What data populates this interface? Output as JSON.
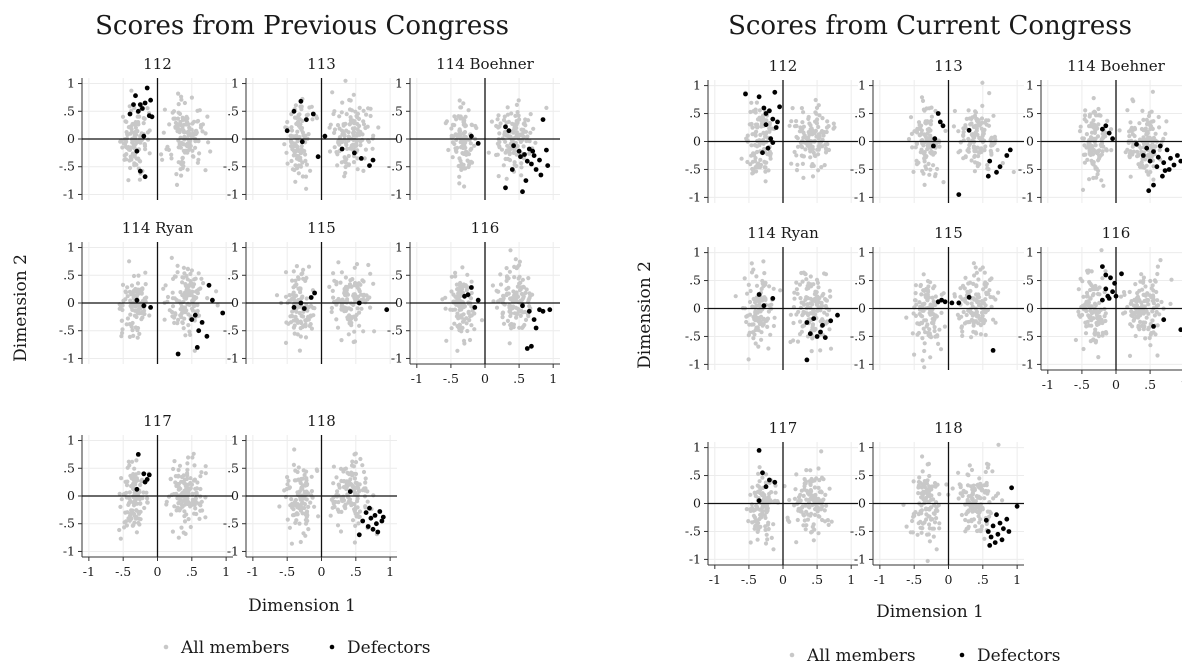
{
  "legend": {
    "all_label": "All members",
    "defector_label": "Defectors",
    "colors": {
      "all": "#c8c8c8",
      "defectors": "#000000"
    }
  },
  "chart_data": [
    {
      "type": "scatter",
      "title": "Scores from Previous Congress",
      "xlabel": "Dimension 1",
      "ylabel": "Dimension 2",
      "xlim": [
        -1.1,
        1.1
      ],
      "ylim": [
        -1.1,
        1.1
      ],
      "xticks": [
        -1,
        -0.5,
        0,
        0.5,
        1
      ],
      "xtick_labels": [
        "-1",
        "-.5",
        "0",
        ".5",
        "1"
      ],
      "yticks": [
        1,
        0.5,
        0,
        -0.5,
        -1
      ],
      "ytick_labels": [
        "1",
        ".5",
        "0",
        "-.5",
        "-1"
      ],
      "grid": true,
      "legend_position": "bottom",
      "panels": [
        {
          "label": "112",
          "defectors": [
            [
              -0.35,
              0.62
            ],
            [
              -0.32,
              0.78
            ],
            [
              -0.28,
              0.5
            ],
            [
              -0.25,
              0.62
            ],
            [
              -0.22,
              0.55
            ],
            [
              -0.18,
              0.65
            ],
            [
              -0.15,
              0.92
            ],
            [
              -0.12,
              0.42
            ],
            [
              -0.08,
              0.4
            ],
            [
              -0.2,
              0.05
            ],
            [
              -0.3,
              -0.22
            ],
            [
              -0.25,
              -0.58
            ],
            [
              -0.18,
              -0.68
            ],
            [
              -0.4,
              0.45
            ],
            [
              -0.1,
              0.7
            ]
          ]
        },
        {
          "label": "113",
          "defectors": [
            [
              -0.5,
              0.15
            ],
            [
              -0.4,
              0.5
            ],
            [
              -0.3,
              0.68
            ],
            [
              -0.22,
              0.35
            ],
            [
              -0.12,
              0.45
            ],
            [
              -0.28,
              -0.05
            ],
            [
              -0.05,
              -0.32
            ],
            [
              0.05,
              0.05
            ],
            [
              0.3,
              -0.18
            ],
            [
              0.48,
              -0.25
            ],
            [
              0.58,
              -0.35
            ],
            [
              0.7,
              -0.48
            ],
            [
              0.75,
              -0.38
            ]
          ]
        },
        {
          "label": "114 Boehner",
          "defectors": [
            [
              -0.2,
              0.05
            ],
            [
              -0.1,
              -0.08
            ],
            [
              0.3,
              0.22
            ],
            [
              0.35,
              0.15
            ],
            [
              0.42,
              -0.12
            ],
            [
              0.5,
              -0.22
            ],
            [
              0.52,
              -0.32
            ],
            [
              0.58,
              -0.28
            ],
            [
              0.62,
              -0.4
            ],
            [
              0.65,
              -0.18
            ],
            [
              0.68,
              -0.45
            ],
            [
              0.72,
              -0.3
            ],
            [
              0.75,
              -0.55
            ],
            [
              0.8,
              -0.38
            ],
            [
              0.82,
              -0.65
            ],
            [
              0.9,
              -0.2
            ],
            [
              0.85,
              0.35
            ],
            [
              0.4,
              -0.55
            ],
            [
              0.55,
              -0.95
            ],
            [
              0.6,
              -0.75
            ],
            [
              0.92,
              -0.48
            ],
            [
              0.3,
              -0.88
            ],
            [
              0.7,
              -0.22
            ]
          ]
        },
        {
          "label": "114 Ryan",
          "defectors": [
            [
              -0.3,
              0.05
            ],
            [
              -0.2,
              -0.05
            ],
            [
              -0.1,
              -0.08
            ],
            [
              0.5,
              -0.3
            ],
            [
              0.55,
              -0.22
            ],
            [
              0.6,
              -0.5
            ],
            [
              0.58,
              -0.8
            ],
            [
              0.65,
              -0.35
            ],
            [
              0.75,
              0.32
            ],
            [
              0.72,
              -0.6
            ],
            [
              0.8,
              0.05
            ],
            [
              0.95,
              -0.18
            ],
            [
              0.3,
              -0.92
            ]
          ]
        },
        {
          "label": "115",
          "defectors": [
            [
              -0.4,
              -0.08
            ],
            [
              -0.3,
              0.0
            ],
            [
              -0.25,
              -0.1
            ],
            [
              -0.15,
              0.1
            ],
            [
              -0.1,
              0.18
            ],
            [
              0.55,
              0.0
            ],
            [
              0.95,
              -0.12
            ]
          ]
        },
        {
          "label": "116",
          "defectors": [
            [
              -0.3,
              0.12
            ],
            [
              -0.25,
              0.15
            ],
            [
              -0.2,
              0.28
            ],
            [
              -0.15,
              -0.08
            ],
            [
              -0.1,
              0.05
            ],
            [
              0.55,
              -0.05
            ],
            [
              0.65,
              -0.15
            ],
            [
              0.72,
              -0.3
            ],
            [
              0.75,
              -0.45
            ],
            [
              0.8,
              -0.12
            ],
            [
              0.85,
              -0.15
            ],
            [
              0.95,
              -0.12
            ],
            [
              0.62,
              -0.82
            ],
            [
              0.68,
              -0.78
            ]
          ]
        },
        {
          "label": "117",
          "defectors": [
            [
              -0.3,
              0.12
            ],
            [
              -0.28,
              0.75
            ],
            [
              -0.2,
              0.4
            ],
            [
              -0.18,
              0.25
            ],
            [
              -0.15,
              0.3
            ],
            [
              -0.12,
              0.38
            ]
          ]
        },
        {
          "label": "118",
          "defectors": [
            [
              0.42,
              0.08
            ],
            [
              0.55,
              -0.7
            ],
            [
              0.6,
              -0.45
            ],
            [
              0.65,
              -0.3
            ],
            [
              0.68,
              -0.55
            ],
            [
              0.7,
              -0.22
            ],
            [
              0.72,
              -0.4
            ],
            [
              0.75,
              -0.6
            ],
            [
              0.78,
              -0.35
            ],
            [
              0.8,
              -0.5
            ],
            [
              0.82,
              -0.65
            ],
            [
              0.85,
              -0.28
            ],
            [
              0.88,
              -0.45
            ],
            [
              0.9,
              -0.38
            ]
          ]
        }
      ]
    },
    {
      "type": "scatter",
      "title": "Scores from Current Congress",
      "xlabel": "Dimension 1",
      "ylabel": "Dimension 2",
      "xlim": [
        -1.1,
        1.1
      ],
      "ylim": [
        -1.1,
        1.1
      ],
      "xticks": [
        -1,
        -0.5,
        0,
        0.5,
        1
      ],
      "xtick_labels": [
        "-1",
        "-.5",
        "0",
        ".5",
        "1"
      ],
      "yticks": [
        1,
        0.5,
        0,
        -0.5,
        -1
      ],
      "ytick_labels": [
        "1",
        ".5",
        "0",
        "-.5",
        "-1"
      ],
      "grid": true,
      "legend_position": "bottom",
      "panels": [
        {
          "label": "112",
          "defectors": [
            [
              -0.55,
              0.85
            ],
            [
              -0.35,
              0.8
            ],
            [
              -0.28,
              0.6
            ],
            [
              -0.25,
              0.5
            ],
            [
              -0.2,
              0.55
            ],
            [
              -0.15,
              0.4
            ],
            [
              -0.12,
              0.88
            ],
            [
              -0.1,
              0.25
            ],
            [
              -0.05,
              0.62
            ],
            [
              -0.08,
              0.35
            ],
            [
              -0.18,
              0.05
            ],
            [
              -0.22,
              -0.12
            ],
            [
              -0.3,
              -0.2
            ],
            [
              -0.15,
              -0.02
            ],
            [
              -0.25,
              0.3
            ]
          ]
        },
        {
          "label": "113",
          "defectors": [
            [
              -0.2,
              0.05
            ],
            [
              -0.15,
              0.5
            ],
            [
              -0.12,
              0.35
            ],
            [
              -0.08,
              0.28
            ],
            [
              -0.22,
              -0.08
            ],
            [
              0.3,
              0.2
            ],
            [
              0.6,
              -0.35
            ],
            [
              0.7,
              -0.55
            ],
            [
              0.75,
              -0.45
            ],
            [
              0.85,
              -0.25
            ],
            [
              0.9,
              -0.15
            ],
            [
              0.58,
              -0.62
            ],
            [
              0.15,
              -0.95
            ]
          ]
        },
        {
          "label": "114 Boehner",
          "defectors": [
            [
              -0.2,
              0.22
            ],
            [
              -0.15,
              0.28
            ],
            [
              -0.1,
              0.15
            ],
            [
              -0.05,
              0.05
            ],
            [
              0.3,
              -0.05
            ],
            [
              0.4,
              -0.25
            ],
            [
              0.45,
              -0.12
            ],
            [
              0.5,
              -0.35
            ],
            [
              0.55,
              -0.18
            ],
            [
              0.6,
              -0.45
            ],
            [
              0.62,
              -0.28
            ],
            [
              0.65,
              -0.08
            ],
            [
              0.7,
              -0.38
            ],
            [
              0.72,
              -0.52
            ],
            [
              0.75,
              -0.15
            ],
            [
              0.8,
              -0.3
            ],
            [
              0.85,
              -0.42
            ],
            [
              0.9,
              -0.25
            ],
            [
              0.95,
              -0.35
            ],
            [
              0.55,
              -0.78
            ],
            [
              0.48,
              -0.88
            ],
            [
              0.68,
              -0.62
            ],
            [
              0.78,
              -0.5
            ]
          ]
        },
        {
          "label": "114 Ryan",
          "defectors": [
            [
              -0.35,
              0.25
            ],
            [
              -0.28,
              0.05
            ],
            [
              -0.15,
              0.18
            ],
            [
              0.35,
              -0.25
            ],
            [
              0.4,
              -0.45
            ],
            [
              0.45,
              -0.18
            ],
            [
              0.5,
              -0.5
            ],
            [
              0.55,
              -0.42
            ],
            [
              0.58,
              -0.3
            ],
            [
              0.62,
              -0.52
            ],
            [
              0.7,
              -0.22
            ],
            [
              0.8,
              -0.12
            ],
            [
              0.35,
              -0.92
            ]
          ]
        },
        {
          "label": "115",
          "defectors": [
            [
              -0.15,
              0.12
            ],
            [
              -0.1,
              0.15
            ],
            [
              -0.05,
              0.12
            ],
            [
              0.05,
              0.1
            ],
            [
              0.15,
              0.1
            ],
            [
              0.65,
              -0.75
            ],
            [
              0.3,
              0.2
            ]
          ]
        },
        {
          "label": "116",
          "defectors": [
            [
              -0.2,
              0.15
            ],
            [
              -0.15,
              0.35
            ],
            [
              -0.12,
              0.22
            ],
            [
              -0.1,
              0.18
            ],
            [
              -0.08,
              0.55
            ],
            [
              -0.05,
              0.3
            ],
            [
              -0.02,
              0.45
            ],
            [
              0.0,
              0.22
            ],
            [
              -0.2,
              0.75
            ],
            [
              -0.15,
              0.6
            ],
            [
              0.08,
              0.62
            ],
            [
              0.7,
              -0.2
            ],
            [
              0.55,
              -0.32
            ],
            [
              0.95,
              -0.38
            ]
          ]
        },
        {
          "label": "117",
          "defectors": [
            [
              -0.35,
              0.95
            ],
            [
              -0.3,
              0.55
            ],
            [
              -0.25,
              0.3
            ],
            [
              -0.2,
              0.42
            ],
            [
              -0.12,
              0.38
            ],
            [
              -0.35,
              0.05
            ]
          ]
        },
        {
          "label": "118",
          "defectors": [
            [
              0.55,
              -0.3
            ],
            [
              0.58,
              -0.5
            ],
            [
              0.62,
              -0.6
            ],
            [
              0.65,
              -0.4
            ],
            [
              0.68,
              -0.7
            ],
            [
              0.7,
              -0.2
            ],
            [
              0.72,
              -0.55
            ],
            [
              0.75,
              -0.35
            ],
            [
              0.78,
              -0.65
            ],
            [
              0.8,
              -0.45
            ],
            [
              0.85,
              -0.28
            ],
            [
              0.88,
              -0.5
            ],
            [
              0.92,
              0.28
            ],
            [
              1.0,
              -0.05
            ],
            [
              0.6,
              -0.75
            ]
          ]
        }
      ]
    }
  ]
}
